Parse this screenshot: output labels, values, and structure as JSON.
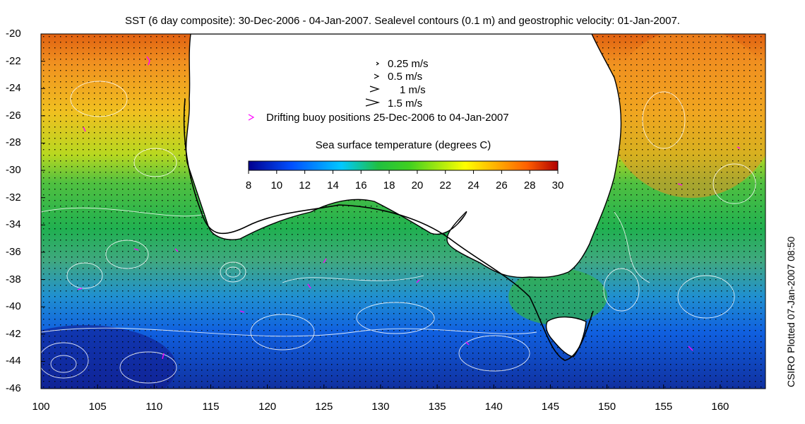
{
  "title": "SST (6 day composite): 30-Dec-2006 - 04-Jan-2007. Sealevel contours (0.1 m) and geostrophic velocity: 01-Jan-2007.",
  "credit": "CSIRO Plotted 07-Jan-2007 08:50",
  "axes": {
    "y_labels": [
      "-20",
      "-22",
      "-24",
      "-26",
      "-28",
      "-30",
      "-32",
      "-34",
      "-36",
      "-38",
      "-40",
      "-42",
      "-44",
      "-46"
    ],
    "x_labels": [
      "100",
      "105",
      "110",
      "115",
      "120",
      "125",
      "130",
      "135",
      "140",
      "145",
      "150",
      "155",
      "160"
    ]
  },
  "legend": {
    "vectors": [
      {
        "label": "0.25 m/s",
        "speed": 0.25
      },
      {
        "label": "0.5 m/s",
        "speed": 0.5
      },
      {
        "label": "1 m/s",
        "speed": 1
      },
      {
        "label": "1.5 m/s",
        "speed": 1.5
      }
    ],
    "buoy_label": "Drifting buoy positions 25-Dec-2006 to 04-Jan-2007",
    "buoy_color": "#ff00ff"
  },
  "colorbar": {
    "title": "Sea surface temperature (degrees C)",
    "ticks": [
      "8",
      "10",
      "12",
      "14",
      "16",
      "18",
      "20",
      "22",
      "24",
      "26",
      "28",
      "30"
    ],
    "colors": [
      "#00008f",
      "#0050ff",
      "#00c8ff",
      "#20c040",
      "#40d020",
      "#ffff00",
      "#ffb000",
      "#ff6000",
      "#b00000"
    ]
  },
  "map": {
    "land_color": "#ffffff",
    "contour_color": "#ffffff",
    "coast_color": "#000000"
  }
}
